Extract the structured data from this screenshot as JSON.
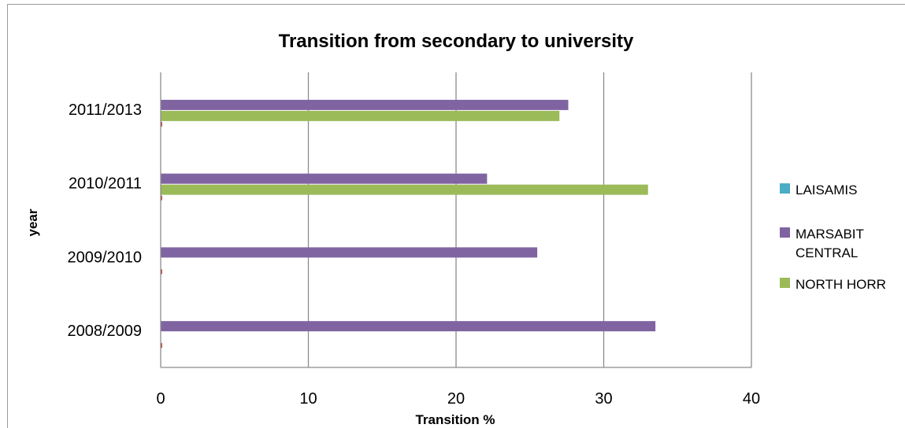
{
  "chart_data": {
    "type": "bar",
    "orientation": "horizontal",
    "title": "Transition from secondary to university",
    "xlabel": "Transition %",
    "ylabel": "year",
    "categories": [
      "2008/2009",
      "2009/2010",
      "2010/2011",
      "2011/2013"
    ],
    "xlim": [
      0,
      40
    ],
    "x_ticks": [
      0,
      10,
      20,
      30,
      40
    ],
    "grid": "vertical",
    "legend_position": "right",
    "series": [
      {
        "name": "LAISAMIS",
        "color": "#4bacc6",
        "values": [
          0,
          0,
          0,
          0
        ]
      },
      {
        "name": "MARSABIT CENTRAL",
        "color": "#8064a2",
        "values": [
          33.5,
          25.5,
          22.1,
          27.6
        ]
      },
      {
        "name": "NORTH HORR",
        "color": "#9bbb59",
        "values": [
          0,
          0,
          33.0,
          27.0
        ]
      },
      {
        "name": "",
        "color": "#c0504d",
        "values": [
          0.1,
          0.1,
          0.05,
          0.05
        ]
      }
    ],
    "legend": [
      {
        "label": "LAISAMIS",
        "color": "#4bacc6",
        "icon": "legend-swatch"
      },
      {
        "label_lines": [
          "MARSABIT",
          "CENTRAL"
        ],
        "color": "#8064a2",
        "icon": "legend-swatch"
      },
      {
        "label": "NORTH HORR",
        "color": "#9bbb59",
        "icon": "legend-swatch"
      }
    ]
  }
}
